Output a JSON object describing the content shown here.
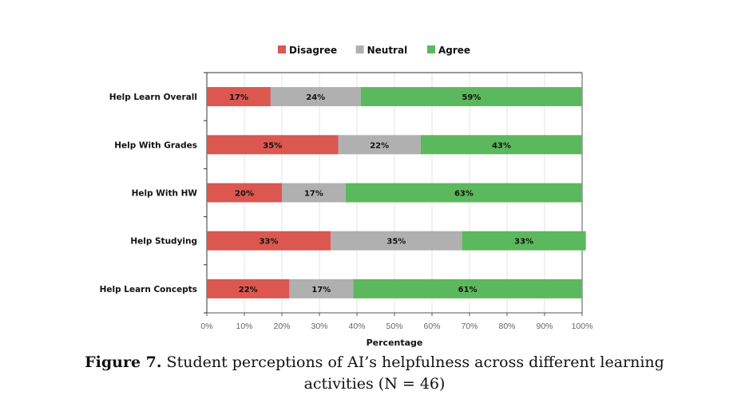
{
  "chart_data": {
    "type": "bar",
    "orientation": "horizontal",
    "stacked": true,
    "categories": [
      "Help Learn Overall",
      "Help With Grades",
      "Help With HW",
      "Help Studying",
      "Help Learn Concepts"
    ],
    "series": [
      {
        "name": "Disagree",
        "color": "#db5750",
        "values": [
          17,
          35,
          20,
          33,
          22
        ]
      },
      {
        "name": "Neutral",
        "color": "#b0b0b0",
        "values": [
          24,
          22,
          17,
          35,
          17
        ]
      },
      {
        "name": "Agree",
        "color": "#5cb85c",
        "values": [
          59,
          43,
          63,
          33,
          61
        ]
      }
    ],
    "xlabel": "Percentage",
    "ylabel": "",
    "xlim": [
      0,
      100
    ],
    "xticks": [
      "0%",
      "10%",
      "20%",
      "30%",
      "40%",
      "50%",
      "60%",
      "70%",
      "80%",
      "90%",
      "100%"
    ],
    "grid": true,
    "legend": "top"
  },
  "caption": {
    "label": "Figure 7.",
    "text_line1": " Student perceptions of AI’s helpfulness across different learning",
    "text_line2": "activities (N = 46)"
  }
}
